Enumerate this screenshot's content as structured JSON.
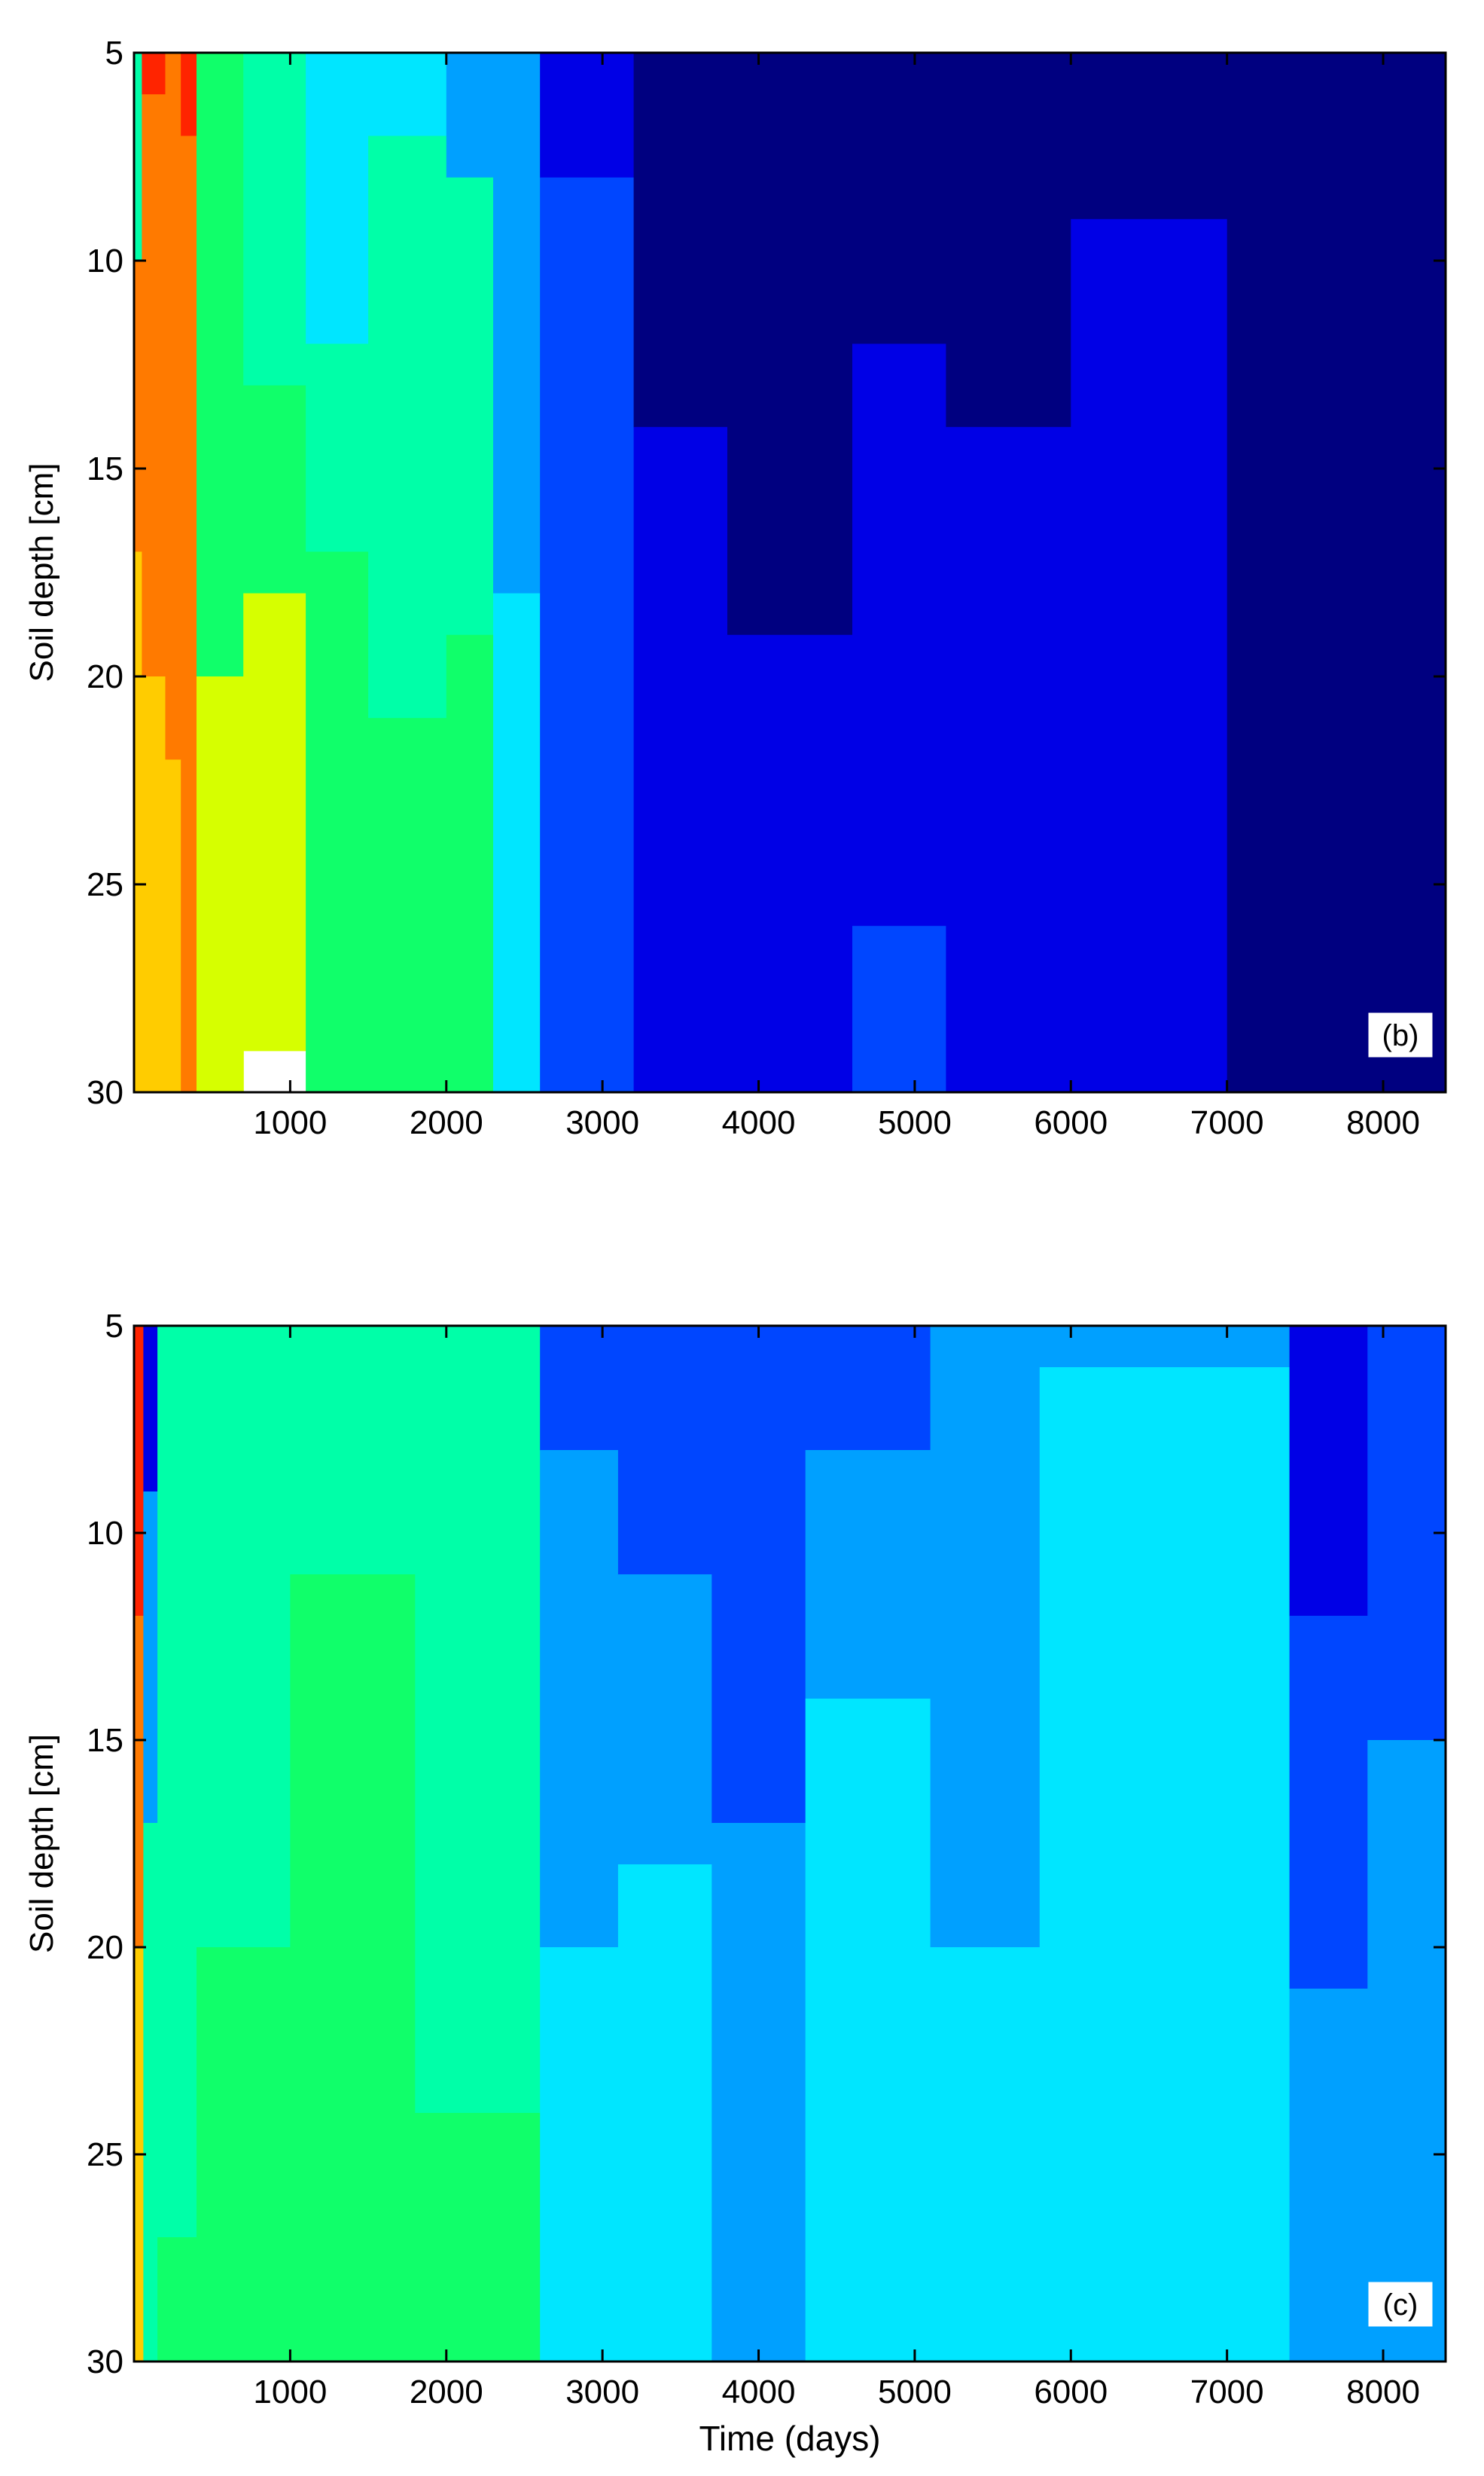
{
  "chart_data": [
    {
      "type": "heatmap",
      "panel_label": "(b)",
      "ylabel": "Soil depth [cm]",
      "xlabel": "",
      "xlim": [
        0,
        8400
      ],
      "ylim": [
        5,
        30
      ],
      "y_reversed": true,
      "xticks": [
        "1000",
        "2000",
        "3000",
        "4000",
        "5000",
        "6000",
        "7000",
        "8000"
      ],
      "yticks": [
        "5",
        "10",
        "15",
        "20",
        "25",
        "30"
      ],
      "colormap": "jet",
      "color_classes": [
        {
          "class": 0,
          "color": "#000080"
        },
        {
          "class": 1,
          "color": "#0000e6"
        },
        {
          "class": 2,
          "color": "#0046ff"
        },
        {
          "class": 3,
          "color": "#00a0ff"
        },
        {
          "class": 4,
          "color": "#00e6ff"
        },
        {
          "class": 5,
          "color": "#00ffa8"
        },
        {
          "class": 6,
          "color": "#10ff6a"
        },
        {
          "class": 7,
          "color": "#d6ff00"
        },
        {
          "class": 8,
          "color": "#ffcc00"
        },
        {
          "class": 9,
          "color": "#ff7a00"
        },
        {
          "class": 10,
          "color": "#ff2400"
        }
      ],
      "time_segments": [
        {
          "t_start": 0,
          "t_end": 50,
          "depth_classes": [
            [
              5,
              10
            ],
            [
              9,
              17
            ],
            [
              8,
              30
            ]
          ]
        },
        {
          "t_start": 50,
          "t_end": 200,
          "depth_classes": [
            [
              10,
              6
            ],
            [
              9,
              20
            ],
            [
              8,
              30
            ]
          ]
        },
        {
          "t_start": 200,
          "t_end": 300,
          "depth_classes": [
            [
              9,
              22
            ],
            [
              8,
              30
            ]
          ]
        },
        {
          "t_start": 300,
          "t_end": 400,
          "depth_classes": [
            [
              10,
              7
            ],
            [
              9,
              30
            ]
          ]
        },
        {
          "t_start": 400,
          "t_end": 700,
          "depth_classes": [
            [
              6,
              20
            ],
            [
              7,
              30
            ]
          ]
        },
        {
          "t_start": 700,
          "t_end": 1100,
          "depth_classes": [
            [
              5,
              13
            ],
            [
              6,
              18
            ],
            [
              7,
              29
            ]
          ]
        },
        {
          "t_start": 1100,
          "t_end": 1500,
          "depth_classes": [
            [
              4,
              12
            ],
            [
              5,
              17
            ],
            [
              6,
              30
            ]
          ]
        },
        {
          "t_start": 1500,
          "t_end": 2000,
          "depth_classes": [
            [
              4,
              7
            ],
            [
              5,
              21
            ],
            [
              6,
              30
            ]
          ]
        },
        {
          "t_start": 2000,
          "t_end": 2300,
          "depth_classes": [
            [
              3,
              8
            ],
            [
              5,
              19
            ],
            [
              6,
              30
            ]
          ]
        },
        {
          "t_start": 2300,
          "t_end": 2600,
          "depth_classes": [
            [
              3,
              18
            ],
            [
              4,
              30
            ]
          ]
        },
        {
          "t_start": 2600,
          "t_end": 3200,
          "depth_classes": [
            [
              1,
              8
            ],
            [
              2,
              30
            ]
          ]
        },
        {
          "t_start": 3200,
          "t_end": 3800,
          "depth_classes": [
            [
              0,
              14
            ],
            [
              1,
              30
            ]
          ]
        },
        {
          "t_start": 3800,
          "t_end": 4600,
          "depth_classes": [
            [
              0,
              19
            ],
            [
              1,
              30
            ]
          ]
        },
        {
          "t_start": 4600,
          "t_end": 5200,
          "depth_classes": [
            [
              0,
              12
            ],
            [
              1,
              26
            ],
            [
              2,
              30
            ]
          ]
        },
        {
          "t_start": 5200,
          "t_end": 6000,
          "depth_classes": [
            [
              0,
              14
            ],
            [
              1,
              30
            ]
          ]
        },
        {
          "t_start": 6000,
          "t_end": 7000,
          "depth_classes": [
            [
              0,
              9
            ],
            [
              1,
              30
            ]
          ]
        },
        {
          "t_start": 7000,
          "t_end": 8400,
          "depth_classes": [
            [
              0,
              30
            ]
          ]
        }
      ]
    },
    {
      "type": "heatmap",
      "panel_label": "(c)",
      "ylabel": "Soil depth [cm]",
      "xlabel": "Time (days)",
      "xlim": [
        0,
        8400
      ],
      "ylim": [
        5,
        30
      ],
      "y_reversed": true,
      "xticks": [
        "1000",
        "2000",
        "3000",
        "4000",
        "5000",
        "6000",
        "7000",
        "8000"
      ],
      "yticks": [
        "5",
        "10",
        "15",
        "20",
        "25",
        "30"
      ],
      "colormap": "jet",
      "color_classes": [
        {
          "class": 0,
          "color": "#000080"
        },
        {
          "class": 1,
          "color": "#0000e6"
        },
        {
          "class": 2,
          "color": "#0046ff"
        },
        {
          "class": 3,
          "color": "#00a0ff"
        },
        {
          "class": 4,
          "color": "#00e6ff"
        },
        {
          "class": 5,
          "color": "#00ffa8"
        },
        {
          "class": 6,
          "color": "#10ff6a"
        },
        {
          "class": 7,
          "color": "#d6ff00"
        },
        {
          "class": 8,
          "color": "#ffcc00"
        },
        {
          "class": 9,
          "color": "#ff7a00"
        },
        {
          "class": 10,
          "color": "#ff2400"
        }
      ],
      "time_segments": [
        {
          "t_start": 0,
          "t_end": 60,
          "depth_classes": [
            [
              10,
              12
            ],
            [
              9,
              20
            ],
            [
              8,
              30
            ]
          ]
        },
        {
          "t_start": 60,
          "t_end": 150,
          "depth_classes": [
            [
              1,
              9
            ],
            [
              3,
              17
            ],
            [
              5,
              30
            ]
          ]
        },
        {
          "t_start": 150,
          "t_end": 400,
          "depth_classes": [
            [
              5,
              27
            ],
            [
              6,
              30
            ]
          ]
        },
        {
          "t_start": 400,
          "t_end": 1000,
          "depth_classes": [
            [
              5,
              20
            ],
            [
              6,
              30
            ]
          ]
        },
        {
          "t_start": 1000,
          "t_end": 1800,
          "depth_classes": [
            [
              5,
              11
            ],
            [
              6,
              30
            ]
          ]
        },
        {
          "t_start": 1800,
          "t_end": 2600,
          "depth_classes": [
            [
              5,
              24
            ],
            [
              6,
              30
            ]
          ]
        },
        {
          "t_start": 2600,
          "t_end": 3100,
          "depth_classes": [
            [
              2,
              8
            ],
            [
              3,
              20
            ],
            [
              4,
              30
            ]
          ]
        },
        {
          "t_start": 3100,
          "t_end": 3700,
          "depth_classes": [
            [
              2,
              11
            ],
            [
              3,
              18
            ],
            [
              4,
              30
            ]
          ]
        },
        {
          "t_start": 3700,
          "t_end": 4300,
          "depth_classes": [
            [
              2,
              17
            ],
            [
              3,
              30
            ]
          ]
        },
        {
          "t_start": 4300,
          "t_end": 5100,
          "depth_classes": [
            [
              2,
              8
            ],
            [
              3,
              14
            ],
            [
              4,
              30
            ]
          ]
        },
        {
          "t_start": 5100,
          "t_end": 5800,
          "depth_classes": [
            [
              3,
              20
            ],
            [
              4,
              30
            ]
          ]
        },
        {
          "t_start": 5800,
          "t_end": 7400,
          "depth_classes": [
            [
              3,
              6
            ],
            [
              4,
              30
            ]
          ]
        },
        {
          "t_start": 7400,
          "t_end": 7900,
          "depth_classes": [
            [
              1,
              12
            ],
            [
              2,
              21
            ],
            [
              3,
              30
            ]
          ]
        },
        {
          "t_start": 7900,
          "t_end": 8400,
          "depth_classes": [
            [
              2,
              15
            ],
            [
              3,
              30
            ]
          ]
        }
      ]
    }
  ]
}
